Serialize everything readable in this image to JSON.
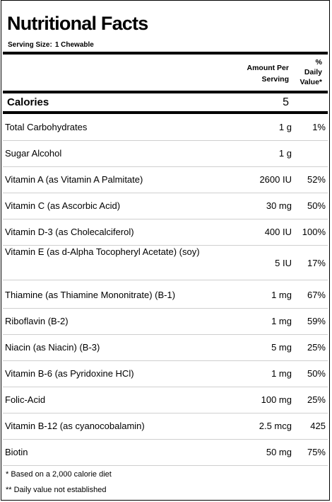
{
  "title": "Nutritional Facts",
  "serving": {
    "label": "Serving Size:",
    "value": "1 Chewable"
  },
  "header": {
    "amount_line1": "Amount Per",
    "amount_line2": "Serving",
    "dv_line1": "%",
    "dv_line2": "Daily",
    "dv_line3": "Value*"
  },
  "calories": {
    "label": "Calories",
    "value": "5"
  },
  "rows": [
    {
      "name": "Total Carbohydrates",
      "amount": "1 g",
      "dv": "1%"
    },
    {
      "name": "Sugar Alcohol",
      "amount": "1 g",
      "dv": ""
    },
    {
      "name": "Vitamin A (as Vitamin A Palmitate)",
      "amount": "2600 IU",
      "dv": "52%"
    },
    {
      "name": "Vitamin C (as Ascorbic Acid)",
      "amount": "30 mg",
      "dv": "50%"
    },
    {
      "name": "Vitamin D-3 (as Cholecalciferol)",
      "amount": "400 IU",
      "dv": "100%"
    },
    {
      "name": "Vitamin E (as d-Alpha Tocopheryl Acetate) (soy)",
      "amount": "5 IU",
      "dv": "17%"
    },
    {
      "name": "Thiamine (as Thiamine Mononitrate) (B-1)",
      "amount": "1 mg",
      "dv": "67%"
    },
    {
      "name": "Riboflavin (B-2)",
      "amount": "1 mg",
      "dv": "59%"
    },
    {
      "name": "Niacin (as Niacin) (B-3)",
      "amount": "5 mg",
      "dv": "25%"
    },
    {
      "name": "Vitamin B-6 (as Pyridoxine HCl)",
      "amount": "1 mg",
      "dv": "50%"
    },
    {
      "name": "Folic-Acid",
      "amount": "100 mg",
      "dv": "25%"
    },
    {
      "name": "Vitamin B-12 (as cyanocobalamin)",
      "amount": "2.5 mcg",
      "dv": "425"
    },
    {
      "name": "Biotin",
      "amount": "50 mg",
      "dv": "75%"
    }
  ],
  "footnotes": {
    "note1": "* Based on a 2,000 calorie diet",
    "note2": "** Daily value not established"
  }
}
